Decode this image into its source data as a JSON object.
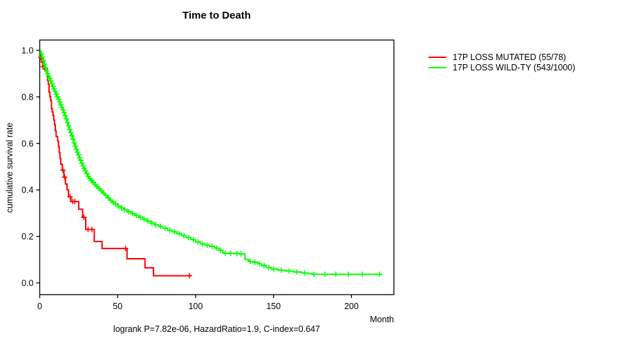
{
  "title": "Time to Death",
  "y_axis_label": "cumulative survival rate",
  "x_axis_label": "Month",
  "footer": "logrank P=7.82e-06, HazardRatio=1.9, C-index=0.647",
  "legend": {
    "items": [
      {
        "label": "17P LOSS MUTATED (55/78)",
        "color": "#ff0000"
      },
      {
        "label": "17P LOSS WILD-TY (543/1000)",
        "color": "#00ff00"
      }
    ]
  },
  "colors": {
    "axis": "#000000",
    "background": "#ffffff"
  },
  "chart_data": {
    "type": "line",
    "subtype": "kaplan-meier-step",
    "title": "Time to Death",
    "xlabel": "Month",
    "ylabel": "cumulative survival rate",
    "annotation": "logrank P=7.82e-06, HazardRatio=1.9, C-index=0.647",
    "xlim": [
      0,
      227
    ],
    "ylim": [
      0,
      1.0
    ],
    "x_ticks": [
      0,
      50,
      100,
      150,
      200
    ],
    "y_ticks": [
      0.0,
      0.2,
      0.4,
      0.6,
      0.8,
      1.0
    ],
    "grid": false,
    "legend_position": "right",
    "series": [
      {
        "name": "17P LOSS MUTATED (55/78)",
        "color": "#ff0000",
        "events_total": "55/78",
        "steps": [
          [
            0,
            1.0
          ],
          [
            0.5,
            0.97
          ],
          [
            1,
            0.95
          ],
          [
            2,
            0.93
          ],
          [
            3,
            0.92
          ],
          [
            4.5,
            0.905
          ],
          [
            5,
            0.87
          ],
          [
            5.5,
            0.855
          ],
          [
            6,
            0.82
          ],
          [
            6.5,
            0.8
          ],
          [
            7,
            0.785
          ],
          [
            7.5,
            0.75
          ],
          [
            8,
            0.735
          ],
          [
            8.5,
            0.72
          ],
          [
            9,
            0.7
          ],
          [
            9.5,
            0.68
          ],
          [
            10,
            0.655
          ],
          [
            10.5,
            0.63
          ],
          [
            11.5,
            0.61
          ],
          [
            12,
            0.585
          ],
          [
            12.5,
            0.56
          ],
          [
            13,
            0.535
          ],
          [
            13.5,
            0.51
          ],
          [
            14.5,
            0.485
          ],
          [
            15.5,
            0.455
          ],
          [
            16.5,
            0.425
          ],
          [
            17.5,
            0.4
          ],
          [
            18.5,
            0.37
          ],
          [
            20,
            0.35
          ],
          [
            25,
            0.317
          ],
          [
            27.5,
            0.282
          ],
          [
            29.5,
            0.23
          ],
          [
            35,
            0.178
          ],
          [
            40,
            0.148
          ],
          [
            56,
            0.104
          ],
          [
            67.5,
            0.065
          ],
          [
            73,
            0.031
          ],
          [
            97.5,
            0.031
          ]
        ],
        "censors": [
          0.7,
          2.2,
          3.5,
          14.8,
          16,
          19.5,
          21,
          22.5,
          28.3,
          31,
          33.5,
          55,
          96
        ]
      },
      {
        "name": "17P LOSS WILD-TY (543/1000)",
        "color": "#00ff00",
        "events_total": "543/1000",
        "steps": [
          [
            0,
            1.0
          ],
          [
            0.7,
            0.985
          ],
          [
            1.4,
            0.97
          ],
          [
            2.1,
            0.955
          ],
          [
            2.8,
            0.94
          ],
          [
            3.5,
            0.925
          ],
          [
            4.2,
            0.912
          ],
          [
            4.9,
            0.9
          ],
          [
            5.6,
            0.89
          ],
          [
            6.3,
            0.88
          ],
          [
            7,
            0.868
          ],
          [
            7.7,
            0.856
          ],
          [
            8.4,
            0.845
          ],
          [
            9.1,
            0.834
          ],
          [
            9.8,
            0.823
          ],
          [
            10.5,
            0.812
          ],
          [
            11.2,
            0.8
          ],
          [
            12,
            0.79
          ],
          [
            12.7,
            0.778
          ],
          [
            13.4,
            0.766
          ],
          [
            14.1,
            0.755
          ],
          [
            14.8,
            0.744
          ],
          [
            15.5,
            0.733
          ],
          [
            16.2,
            0.72
          ],
          [
            17,
            0.705
          ],
          [
            17.7,
            0.69
          ],
          [
            18.4,
            0.675
          ],
          [
            19.1,
            0.66
          ],
          [
            19.8,
            0.646
          ],
          [
            20.5,
            0.633
          ],
          [
            21.2,
            0.618
          ],
          [
            22,
            0.602
          ],
          [
            22.7,
            0.588
          ],
          [
            23.4,
            0.575
          ],
          [
            24.1,
            0.562
          ],
          [
            24.8,
            0.55
          ],
          [
            25.5,
            0.538
          ],
          [
            26.2,
            0.527
          ],
          [
            27,
            0.515
          ],
          [
            27.7,
            0.503
          ],
          [
            28.4,
            0.492
          ],
          [
            29.1,
            0.482
          ],
          [
            30,
            0.47
          ],
          [
            31,
            0.458
          ],
          [
            32,
            0.448
          ],
          [
            33,
            0.44
          ],
          [
            34,
            0.432
          ],
          [
            35.2,
            0.423
          ],
          [
            36.4,
            0.414
          ],
          [
            37.6,
            0.406
          ],
          [
            39,
            0.396
          ],
          [
            40.5,
            0.386
          ],
          [
            42,
            0.376
          ],
          [
            43.5,
            0.366
          ],
          [
            45,
            0.356
          ],
          [
            46.5,
            0.347
          ],
          [
            48,
            0.34
          ],
          [
            50,
            0.33
          ],
          [
            52,
            0.322
          ],
          [
            54,
            0.314
          ],
          [
            56,
            0.306
          ],
          [
            58.5,
            0.298
          ],
          [
            61,
            0.29
          ],
          [
            63.5,
            0.282
          ],
          [
            66,
            0.274
          ],
          [
            68.5,
            0.266
          ],
          [
            71,
            0.258
          ],
          [
            73.5,
            0.25
          ],
          [
            76,
            0.243
          ],
          [
            79,
            0.235
          ],
          [
            82,
            0.227
          ],
          [
            85,
            0.22
          ],
          [
            88,
            0.212
          ],
          [
            91,
            0.203
          ],
          [
            94,
            0.195
          ],
          [
            97,
            0.186
          ],
          [
            100,
            0.176
          ],
          [
            103,
            0.168
          ],
          [
            106,
            0.162
          ],
          [
            109,
            0.157
          ],
          [
            112,
            0.15
          ],
          [
            115,
            0.14
          ],
          [
            117.5,
            0.128
          ],
          [
            121,
            0.127
          ],
          [
            124.5,
            0.126
          ],
          [
            128,
            0.125
          ],
          [
            131.7,
            0.1
          ],
          [
            134,
            0.092
          ],
          [
            137,
            0.089
          ],
          [
            140,
            0.082
          ],
          [
            142.5,
            0.074
          ],
          [
            145.5,
            0.066
          ],
          [
            148.5,
            0.059
          ],
          [
            153,
            0.055
          ],
          [
            158,
            0.051
          ],
          [
            163,
            0.047
          ],
          [
            168,
            0.043
          ],
          [
            172,
            0.04
          ],
          [
            175,
            0.037
          ],
          [
            219.5,
            0.037
          ]
        ],
        "censors": [
          1,
          1.7,
          2.4,
          3,
          3.7,
          4.4,
          5,
          5.7,
          6.4,
          7.1,
          7.8,
          8.5,
          9.2,
          9.9,
          10.6,
          11.3,
          12.1,
          12.8,
          13.5,
          14.2,
          14.9,
          15.6,
          16.3,
          17.1,
          17.8,
          18.5,
          19.2,
          19.9,
          20.6,
          21.3,
          22.1,
          22.8,
          23.5,
          24.2,
          24.9,
          25.6,
          26.3,
          27.1,
          27.8,
          28.5,
          29.2,
          30.2,
          31.2,
          32.2,
          33.2,
          34.4,
          35.6,
          36.8,
          38,
          39.5,
          41,
          42.5,
          44,
          45.5,
          47,
          48.5,
          50.5,
          52.5,
          54.5,
          57,
          59.5,
          62,
          64.5,
          67,
          69.5,
          72,
          74.5,
          77.5,
          80.5,
          83.5,
          86.5,
          89.5,
          92.5,
          95.5,
          98.5,
          101.5,
          104.5,
          107.5,
          110.5,
          113.5,
          116,
          119,
          122.5,
          126.5,
          129,
          135,
          138,
          141,
          144,
          147,
          150,
          155,
          160,
          165,
          170,
          176,
          183,
          190,
          198,
          207,
          218
        ]
      }
    ]
  }
}
